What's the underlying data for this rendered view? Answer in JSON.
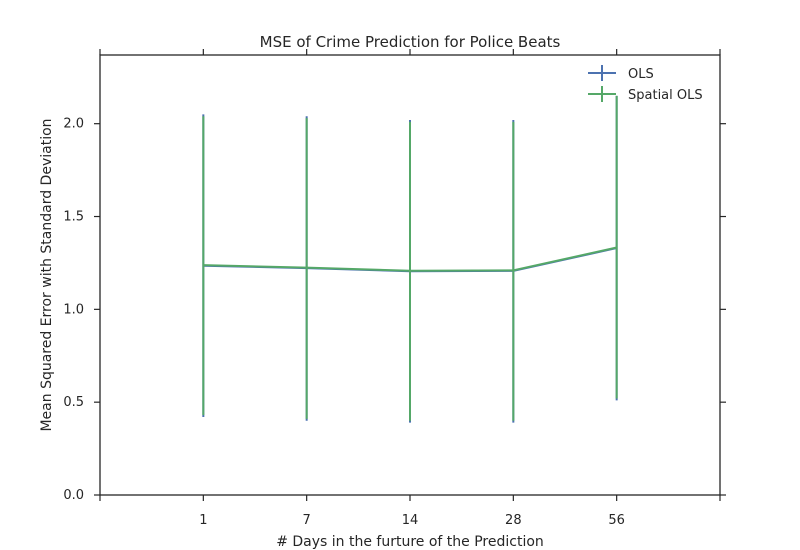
{
  "chart_data": {
    "type": "line",
    "title": "MSE of Crime Prediction for Police Beats",
    "xlabel": "# Days in the furture of the Prediction",
    "ylabel": "Mean Squared Error with Standard Deviation",
    "categories": [
      "1",
      "7",
      "14",
      "28",
      "56"
    ],
    "ylim": [
      0.0,
      2.37
    ],
    "yticks": [
      "0.0",
      "0.5",
      "1.0",
      "1.5",
      "2.0"
    ],
    "grid": false,
    "legend_position": "top-right",
    "series": [
      {
        "name": "OLS",
        "color": "#4c72b0",
        "values": [
          1.235,
          1.222,
          1.205,
          1.207,
          1.33
        ],
        "err_low": [
          0.42,
          0.4,
          0.39,
          0.39,
          0.51
        ],
        "err_high": [
          2.05,
          2.04,
          2.02,
          2.02,
          2.15
        ]
      },
      {
        "name": "Spatial OLS",
        "color": "#55a868",
        "values": [
          1.238,
          1.225,
          1.208,
          1.21,
          1.333
        ],
        "err_low": [
          0.43,
          0.41,
          0.4,
          0.4,
          0.52
        ],
        "err_high": [
          2.04,
          2.03,
          2.01,
          2.01,
          2.15
        ]
      }
    ]
  }
}
